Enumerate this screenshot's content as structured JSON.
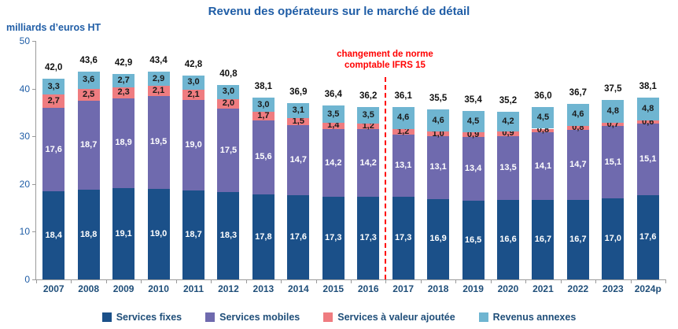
{
  "title": "Revenu des opérateurs sur le marché de détail",
  "units_label": "milliards d’euros HT",
  "annotation": {
    "line1": "changement de norme",
    "line2": "comptable IFRS 15"
  },
  "colors": {
    "services_fixes": "#1B5089",
    "services_mobiles": "#6F6AAE",
    "services_valeur_ajoutee": "#EF7C80",
    "revenus_annexes": "#6FB5D1",
    "title_blue": "#1F5DA6",
    "axis_text_blue": "#1F4E79",
    "annotation_red": "#FF0000"
  },
  "chart_data": {
    "type": "bar",
    "stacked": true,
    "title": "Revenu des opérateurs sur le marché de détail",
    "ylabel": "milliards d’euros HT",
    "ylim": [
      0,
      50
    ],
    "yticks": [
      0,
      10,
      20,
      30,
      40,
      50
    ],
    "grid": false,
    "legend_position": "bottom",
    "categories": [
      "2007",
      "2008",
      "2009",
      "2010",
      "2011",
      "2012",
      "2013",
      "2014",
      "2015",
      "2016",
      "2017",
      "2018",
      "2019",
      "2020",
      "2021",
      "2022",
      "2023",
      "2024p"
    ],
    "series": [
      {
        "name": "Services fixes",
        "color": "#1B5089",
        "label_color": "#FFFFFF",
        "values": [
          18.4,
          18.8,
          19.1,
          19.0,
          18.7,
          18.3,
          17.8,
          17.6,
          17.3,
          17.3,
          17.3,
          16.9,
          16.5,
          16.6,
          16.7,
          16.7,
          17.0,
          17.6
        ]
      },
      {
        "name": "Services mobiles",
        "color": "#6F6AAE",
        "label_color": "#FFFFFF",
        "values": [
          17.6,
          18.7,
          18.9,
          19.5,
          19.0,
          17.5,
          15.6,
          14.7,
          14.2,
          14.2,
          13.1,
          13.1,
          13.4,
          13.5,
          14.1,
          14.7,
          15.1,
          15.1
        ]
      },
      {
        "name": "Services à valeur ajoutée",
        "color": "#EF7C80",
        "label_color": "#1A1A1A",
        "values": [
          2.7,
          2.5,
          2.3,
          2.1,
          2.1,
          2.0,
          1.7,
          1.5,
          1.4,
          1.2,
          1.2,
          1.0,
          0.9,
          0.9,
          0.8,
          0.8,
          0.7,
          0.6
        ]
      },
      {
        "name": "Revenus annexes",
        "color": "#6FB5D1",
        "label_color": "#1A1A1A",
        "values": [
          3.3,
          3.6,
          2.7,
          2.9,
          3.0,
          3.0,
          3.0,
          3.1,
          3.5,
          3.5,
          4.6,
          4.6,
          4.5,
          4.2,
          4.5,
          4.6,
          4.8,
          4.8
        ]
      }
    ],
    "totals": [
      "42,0",
      "43,6",
      "42,9",
      "43,4",
      "42,8",
      "40,8",
      "38,1",
      "36,9",
      "36,4",
      "36,2",
      "36,1",
      "35,5",
      "35,4",
      "35,2",
      "36,0",
      "36,7",
      "37,5",
      "38,1"
    ],
    "divider_after_category": "2016",
    "annotation_text": "changement de norme comptable IFRS 15"
  },
  "legend": {
    "items": [
      {
        "label": "Services fixes",
        "color": "#1B5089"
      },
      {
        "label": "Services mobiles",
        "color": "#6F6AAE"
      },
      {
        "label": "Services à valeur ajoutée",
        "color": "#EF7C80"
      },
      {
        "label": "Revenus annexes",
        "color": "#6FB5D1"
      }
    ]
  }
}
